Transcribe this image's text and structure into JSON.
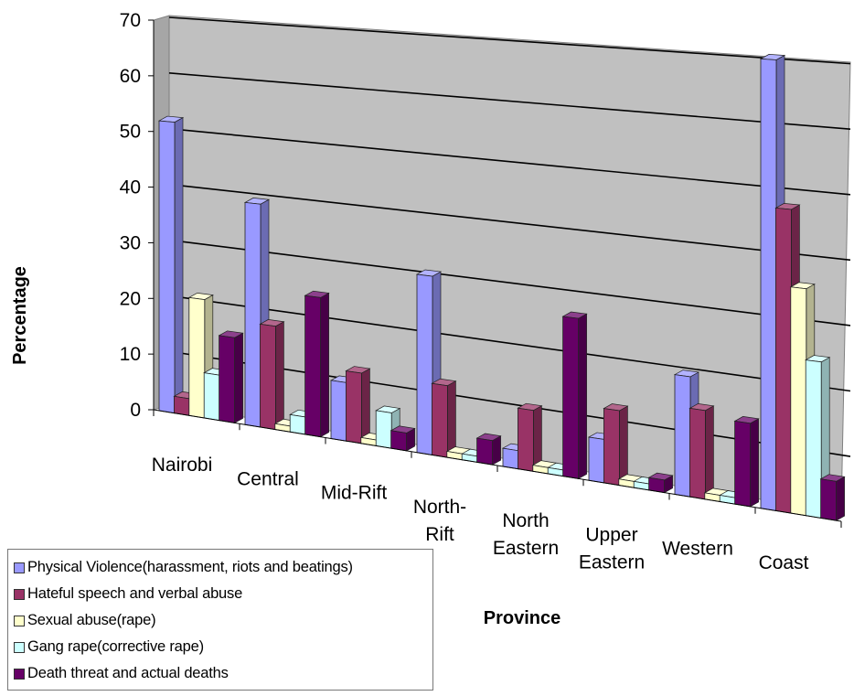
{
  "chart_data": {
    "type": "bar",
    "title": "",
    "xlabel": "Province",
    "ylabel": "Percentage",
    "ylim": [
      0,
      70
    ],
    "yticks": [
      "0",
      "10",
      "20",
      "30",
      "40",
      "50",
      "60",
      "70"
    ],
    "grid": true,
    "legend_position": "bottom-left",
    "categories": [
      [
        "Nairobi"
      ],
      [
        "Central"
      ],
      [
        "Mid-Rift"
      ],
      [
        "North-",
        "Rift"
      ],
      [
        "North",
        "Eastern"
      ],
      [
        "Upper",
        "Eastern"
      ],
      [
        "Western"
      ],
      [
        "Coast"
      ]
    ],
    "series": [
      {
        "name": "Physical Violence(harassment, riots and beatings)",
        "color": "#9999ff",
        "values": [
          52,
          39,
          10,
          30,
          3,
          7,
          19,
          70
        ]
      },
      {
        "name": "Hateful speech and verbal abuse",
        "color": "#993366",
        "values": [
          3,
          18,
          12,
          12,
          10,
          12,
          14,
          47
        ]
      },
      {
        "name": "Sexual abuse(rape)",
        "color": "#ffffcc",
        "values": [
          21,
          1,
          1,
          1,
          1,
          1,
          1,
          35
        ]
      },
      {
        "name": "Gang rape(corrective rape)",
        "color": "#ccffff",
        "values": [
          8,
          3,
          6,
          1,
          1,
          1,
          1,
          24
        ]
      },
      {
        "name": "Death threat and actual deaths",
        "color": "#660066",
        "values": [
          15,
          24,
          3,
          4,
          26,
          2,
          13,
          6
        ]
      }
    ]
  }
}
